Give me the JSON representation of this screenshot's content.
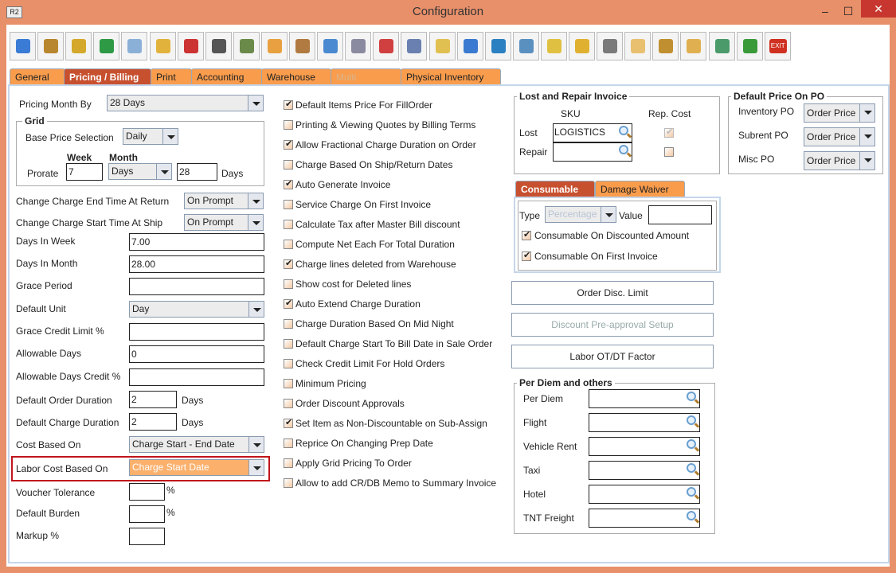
{
  "window": {
    "title": "Configuration",
    "logo": "R2",
    "minimize": "–",
    "maximize": "☐",
    "close": "✕"
  },
  "toolbar": [
    "save-icon",
    "shipping-icon",
    "coins-icon",
    "invoice-icon",
    "edit-icon",
    "form-icon",
    "pay-icon",
    "grid-icon",
    "ledger-icon",
    "lock-icon",
    "calendar-icon",
    "ruler-icon",
    "gears-icon",
    "cubes-icon",
    "money-gear-icon",
    "folder-clock-icon",
    "card-icon",
    "document-cube-icon",
    "document-arrow-icon",
    "shield-icon",
    "shield-user-icon",
    "valve-gear-icon",
    "documents-icon",
    "user-arrow-icon",
    "folder-gear-icon",
    "calculator-gear-icon",
    "transfer-icon",
    "exit-icon"
  ],
  "toolbar_exit_label": "EXIT",
  "tabs": [
    "General",
    "Pricing / Billing",
    "Print",
    "Accounting",
    "Warehouse",
    "Multi Currency",
    "Physical Inventory"
  ],
  "left": {
    "pricing_month_by": {
      "label": "Pricing Month By",
      "value": "28 Days"
    },
    "grid": {
      "legend": "Grid",
      "base_price_label": "Base Price Selection",
      "base_price_value": "Daily",
      "week_label": "Week",
      "month_label": "Month",
      "prorate_label": "Prorate",
      "prorate_week": "7",
      "prorate_month_unit": "Days",
      "prorate_month_value": "28",
      "days_label": "Days"
    },
    "change_end": {
      "label": "Change Charge End Time At Return",
      "value": "On Prompt"
    },
    "change_start": {
      "label": "Change Charge Start Time At Ship",
      "value": "On Prompt"
    },
    "days_in_week": {
      "label": "Days In Week",
      "value": "7.00"
    },
    "days_in_month": {
      "label": "Days In Month",
      "value": "28.00"
    },
    "grace_period": {
      "label": "Grace Period",
      "value": ""
    },
    "default_unit": {
      "label": "Default Unit",
      "value": "Day"
    },
    "grace_credit": {
      "label": "Grace Credit Limit %",
      "value": ""
    },
    "allowable_days": {
      "label": "Allowable Days",
      "value": "0"
    },
    "allowable_credit": {
      "label": "Allowable Days Credit %",
      "value": ""
    },
    "order_duration": {
      "label": "Default Order Duration",
      "value": "2",
      "unit": "Days"
    },
    "charge_duration": {
      "label": "Default Charge Duration",
      "value": "2",
      "unit": "Days"
    },
    "cost_based": {
      "label": "Cost Based On",
      "value": "Charge Start - End Date"
    },
    "labor_cost": {
      "label": "Labor Cost Based On",
      "value": "Charge Start Date"
    },
    "voucher": {
      "label": "Voucher Tolerance",
      "value": "",
      "unit": "%"
    },
    "burden": {
      "label": "Default Burden",
      "value": "",
      "unit": "%"
    },
    "markup": {
      "label": "Markup %",
      "value": ""
    }
  },
  "options": [
    {
      "label": "Default Items Price For FillOrder",
      "checked": true
    },
    {
      "label": "Printing & Viewing Quotes by Billing Terms",
      "checked": false
    },
    {
      "label": "Allow Fractional Charge Duration on Order",
      "checked": true
    },
    {
      "label": "Charge Based On Ship/Return Dates",
      "checked": false
    },
    {
      "label": "Auto Generate Invoice",
      "checked": true
    },
    {
      "label": "Service Charge On First Invoice",
      "checked": false
    },
    {
      "label": "Calculate Tax after Master Bill discount",
      "checked": false
    },
    {
      "label": "Compute Net Each For Total Duration",
      "checked": false
    },
    {
      "label": "Charge lines deleted from Warehouse",
      "checked": true
    },
    {
      "label": "Show cost for Deleted lines",
      "checked": false
    },
    {
      "label": "Auto Extend Charge Duration",
      "checked": true
    },
    {
      "label": "Charge Duration Based On Mid Night",
      "checked": false
    },
    {
      "label": "Default Charge Start To Bill Date in Sale Order",
      "checked": false
    },
    {
      "label": "Check Credit Limit For Hold Orders",
      "checked": false
    },
    {
      "label": "Minimum Pricing",
      "checked": false
    },
    {
      "label": "Order Discount Approvals",
      "checked": false
    },
    {
      "label": "Set Item as Non-Discountable on Sub-Assign",
      "checked": true
    },
    {
      "label": "Reprice On Changing Prep Date",
      "checked": false
    },
    {
      "label": "Apply Grid Pricing To Order",
      "checked": false
    },
    {
      "label": "Allow to add CR/DB Memo to Summary Invoice",
      "checked": false
    }
  ],
  "lost_repair": {
    "legend": "Lost and Repair Invoice",
    "sku_header": "SKU",
    "rep_cost_header": "Rep. Cost",
    "lost_label": "Lost",
    "lost_value": "LOGISTICS",
    "lost_rep_cost": true,
    "repair_label": "Repair",
    "repair_value": "",
    "repair_rep_cost": false
  },
  "default_price_po": {
    "legend": "Default Price On PO",
    "rows": [
      {
        "label": "Inventory PO",
        "value": "Order Price"
      },
      {
        "label": "Subrent PO",
        "value": "Order Price"
      },
      {
        "label": "Misc PO",
        "value": "Order Price"
      }
    ]
  },
  "subtabs": [
    "Consumable",
    "Damage Waiver"
  ],
  "consumable": {
    "type_label": "Type",
    "type_value": "Percentage",
    "value_label": "Value",
    "value": "",
    "on_discounted": {
      "label": "Consumable On Discounted Amount",
      "checked": true
    },
    "on_first_invoice": {
      "label": "Consumable On First Invoice",
      "checked": true
    }
  },
  "buttons": {
    "order_disc_limit": "Order Disc. Limit",
    "discount_preapproval": "Discount Pre-approval Setup",
    "labor_ot_dt": "Labor OT/DT Factor"
  },
  "per_diem": {
    "legend": "Per Diem and others",
    "rows": [
      "Per Diem",
      "Flight",
      "Vehicle Rent",
      "Taxi",
      "Hotel",
      "TNT Freight"
    ]
  },
  "colors": {
    "window_frame": "#e8906a",
    "tab": "#f99c4c",
    "active_tab": "#c7502f",
    "highlight_border": "#c0141c",
    "highlight_combo": "#fbb06c"
  }
}
